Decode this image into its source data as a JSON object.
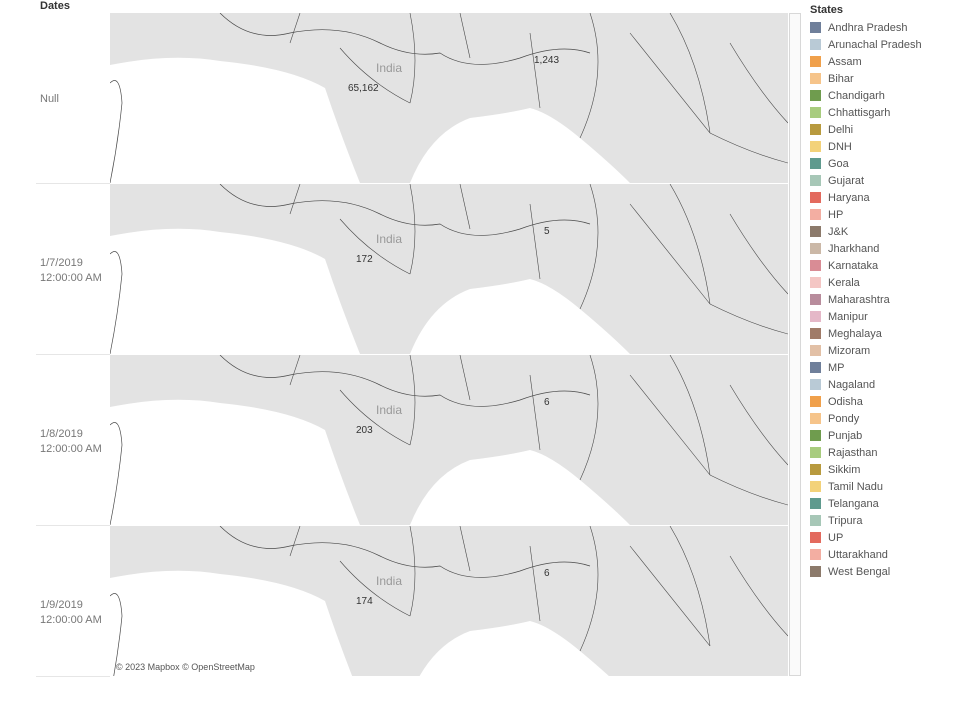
{
  "header": {
    "dates_label": "Dates"
  },
  "rows": [
    {
      "date": "Null",
      "india_label": "India",
      "india_value": "65,162",
      "east_value": "1,243"
    },
    {
      "date": "1/7/2019\n12:00:00 AM",
      "india_label": "India",
      "india_value": "172",
      "east_value": "5"
    },
    {
      "date": "1/8/2019\n12:00:00 AM",
      "india_label": "India",
      "india_value": "203",
      "east_value": "6"
    },
    {
      "date": "1/9/2019\n12:00:00 AM",
      "india_label": "India",
      "india_value": "174",
      "east_value": "6"
    }
  ],
  "attribution": "© 2023 Mapbox © OpenStreetMap",
  "colors": {
    "land": "#e3e3e3",
    "sea": "#ffffff",
    "border": "#4a4a4a"
  },
  "legend": {
    "title": "States",
    "items": [
      {
        "name": "Andhra Pradesh",
        "color": "#6f7f9a"
      },
      {
        "name": "Arunachal Pradesh",
        "color": "#b9cad6"
      },
      {
        "name": "Assam",
        "color": "#f0a04b"
      },
      {
        "name": "Bihar",
        "color": "#f6c48a"
      },
      {
        "name": "Chandigarh",
        "color": "#6f9c4e"
      },
      {
        "name": "Chhattisgarh",
        "color": "#a8cc7e"
      },
      {
        "name": "Delhi",
        "color": "#b89a3e"
      },
      {
        "name": "DNH",
        "color": "#f3d27a"
      },
      {
        "name": "Goa",
        "color": "#5f9a8e"
      },
      {
        "name": "Gujarat",
        "color": "#a7c7b7"
      },
      {
        "name": "Haryana",
        "color": "#e36a5e"
      },
      {
        "name": "HP",
        "color": "#f3aea2"
      },
      {
        "name": "J&K",
        "color": "#8c7a6b"
      },
      {
        "name": "Jharkhand",
        "color": "#cbb8a7"
      },
      {
        "name": "Karnataka",
        "color": "#d98c95"
      },
      {
        "name": "Kerala",
        "color": "#f4c6c4"
      },
      {
        "name": "Maharashtra",
        "color": "#b88c9c"
      },
      {
        "name": "Manipur",
        "color": "#e5b8c8"
      },
      {
        "name": "Meghalaya",
        "color": "#a07b68"
      },
      {
        "name": "Mizoram",
        "color": "#e2c0a6"
      },
      {
        "name": "MP",
        "color": "#6f7f9a"
      },
      {
        "name": "Nagaland",
        "color": "#b9cad6"
      },
      {
        "name": "Odisha",
        "color": "#f0a04b"
      },
      {
        "name": "Pondy",
        "color": "#f6c48a"
      },
      {
        "name": "Punjab",
        "color": "#6f9c4e"
      },
      {
        "name": "Rajasthan",
        "color": "#a8cc7e"
      },
      {
        "name": "Sikkim",
        "color": "#b89a3e"
      },
      {
        "name": "Tamil Nadu",
        "color": "#f3d27a"
      },
      {
        "name": "Telangana",
        "color": "#5f9a8e"
      },
      {
        "name": "Tripura",
        "color": "#a7c7b7"
      },
      {
        "name": "UP",
        "color": "#e36a5e"
      },
      {
        "name": "Uttarakhand",
        "color": "#f3aea2"
      },
      {
        "name": "West Bengal",
        "color": "#8c7a6b"
      }
    ]
  }
}
